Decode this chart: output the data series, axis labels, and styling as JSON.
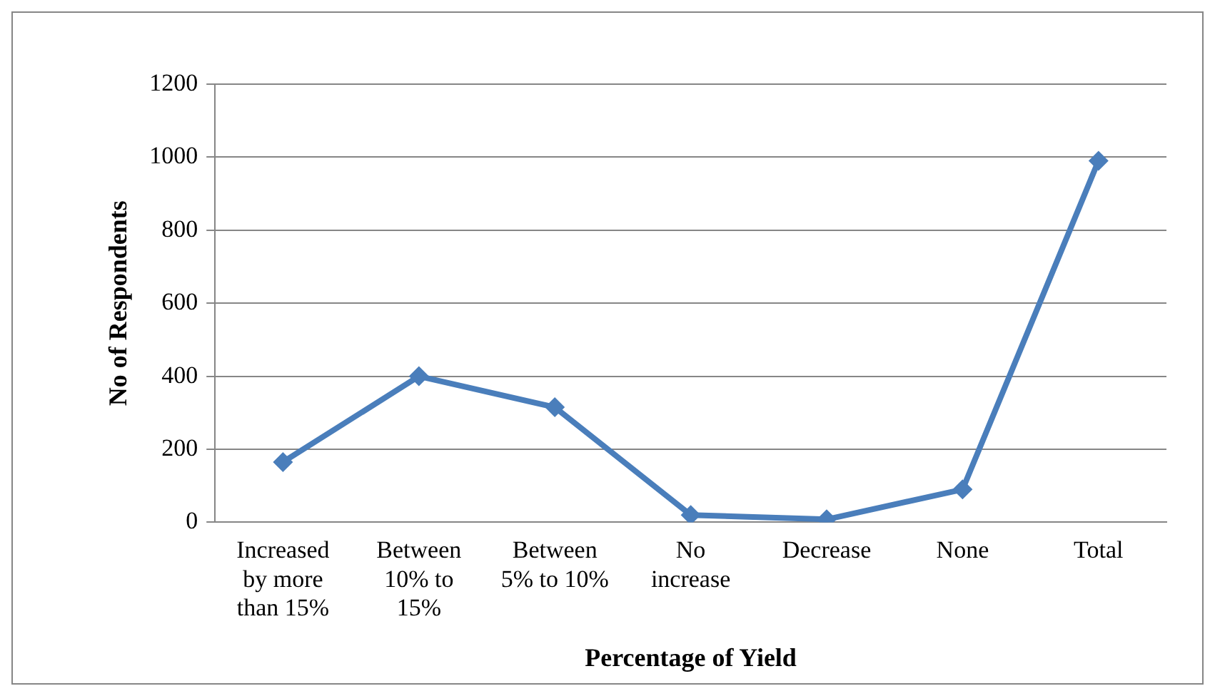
{
  "chart_data": {
    "type": "line",
    "xlabel": "Percentage of Yield",
    "ylabel": "No of Respondents",
    "categories": [
      "Increased by more than 15%",
      "Between 10% to 15%",
      "Between 5% to 10%",
      "No increase",
      "Decrease",
      "None",
      "Total"
    ],
    "series": [
      {
        "color": "#4a7ebb",
        "values": [
          165,
          400,
          315,
          20,
          8,
          90,
          990
        ]
      }
    ],
    "ylim": [
      0,
      1200
    ],
    "yticks": [
      0,
      200,
      400,
      600,
      800,
      1000,
      1200
    ],
    "grid": "y",
    "legend": false,
    "marker": "diamond",
    "line_style": "solid"
  }
}
